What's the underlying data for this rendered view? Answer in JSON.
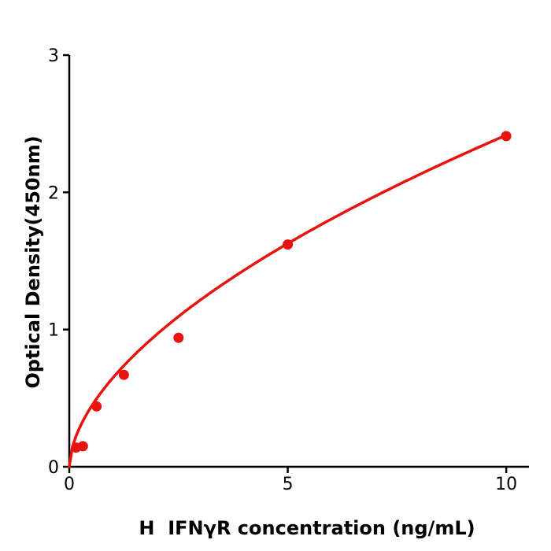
{
  "chart_data": {
    "type": "scatter",
    "title": "",
    "xlabel": "H  IFNγR concentration (ng/mL)",
    "ylabel": "Optical Density(450nm)",
    "x_ticks": [
      0,
      5,
      10
    ],
    "y_ticks": [
      0,
      1,
      2,
      3
    ],
    "xlim": [
      0,
      10.52
    ],
    "ylim": [
      0,
      3
    ],
    "grid": false,
    "legend": null,
    "axis_color": "#000000",
    "series": [
      {
        "color": "#e8130c",
        "marker": "circle",
        "points": [
          {
            "x": 0.156,
            "y": 0.14
          },
          {
            "x": 0.3125,
            "y": 0.15
          },
          {
            "x": 0.625,
            "y": 0.44
          },
          {
            "x": 1.25,
            "y": 0.67
          },
          {
            "x": 2.5,
            "y": 0.94
          },
          {
            "x": 5.0,
            "y": 1.62
          },
          {
            "x": 10.0,
            "y": 2.41
          }
        ],
        "fit": {
          "model": "power",
          "a": 0.649,
          "b": 0.571,
          "x_start": 0,
          "x_end": 10
        }
      }
    ]
  }
}
